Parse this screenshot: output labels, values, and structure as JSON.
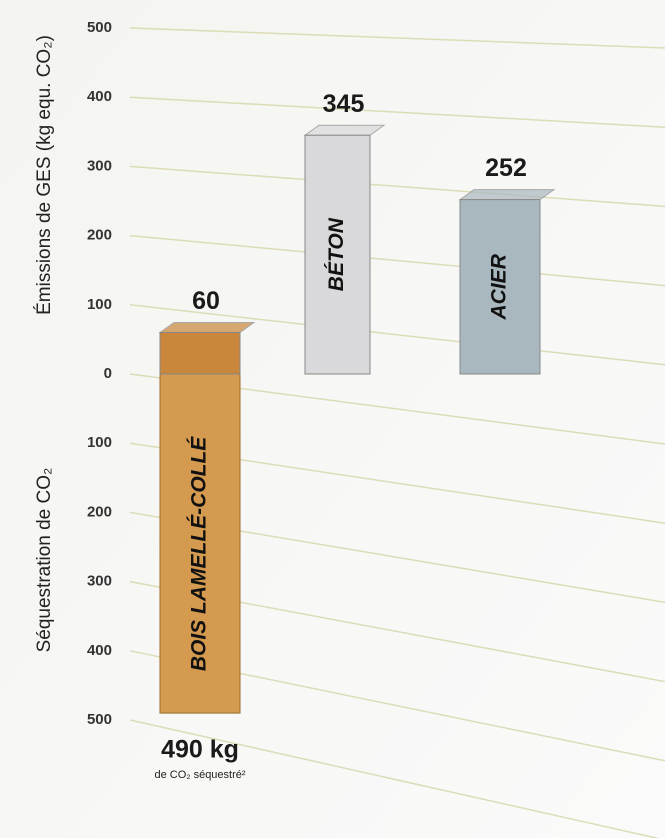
{
  "chart_data": {
    "type": "bar",
    "y_label": "Émissions de GES (kg equ. CO₂)",
    "y_label_negative": "Séquestration de CO₂",
    "categories": [
      "BOIS LAMELLÉ-COLLÉ",
      "BÉTON",
      "ACIER"
    ],
    "series": [
      {
        "color": [
          "#c8873a",
          "#d9d9dc",
          "#a9b8bf"
        ],
        "values": [
          60,
          345,
          252
        ],
        "value_labels": [
          "60",
          "345",
          "252"
        ]
      },
      {
        "color": "#d49a50",
        "values": [
          -490,
          null,
          null
        ],
        "value_labels": [
          "490 kg",
          null,
          null
        ]
      }
    ],
    "annotation": "de CO₂ séquestré²",
    "ylim": [
      -500,
      500
    ],
    "yticks": [
      {
        "value": -500,
        "label": "500"
      },
      {
        "value": -400,
        "label": "400"
      },
      {
        "value": -300,
        "label": "300"
      },
      {
        "value": -200,
        "label": "200"
      },
      {
        "value": -100,
        "label": "100"
      },
      0,
      100,
      200,
      300,
      400,
      500
    ],
    "grid": true
  }
}
